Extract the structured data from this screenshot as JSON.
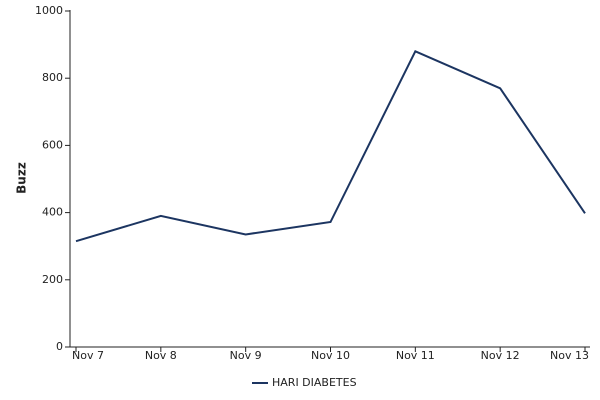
{
  "chart_data": {
    "type": "line",
    "y_label": "Buzz",
    "categories": [
      "Nov 7",
      "Nov 8",
      "Nov 9",
      "Nov 10",
      "Nov 11",
      "Nov 12",
      "Nov 13"
    ],
    "series": [
      {
        "name": "HARI DIABETES",
        "color": "#1c3561",
        "values": [
          315,
          390,
          335,
          372,
          880,
          770,
          398
        ]
      }
    ],
    "ylim": [
      0,
      1000
    ],
    "yticks": [
      0,
      200,
      400,
      600,
      800,
      1000
    ],
    "legend": "bottom"
  }
}
